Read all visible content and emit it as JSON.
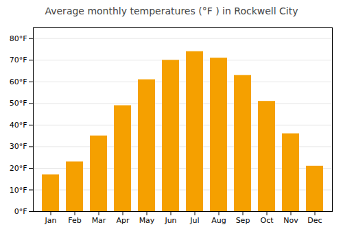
{
  "chart_data": {
    "type": "bar",
    "title": "Average monthly temperatures (°F ) in Rockwell City",
    "categories": [
      "Jan",
      "Feb",
      "Mar",
      "Apr",
      "May",
      "Jun",
      "Jul",
      "Aug",
      "Sep",
      "Oct",
      "Nov",
      "Dec"
    ],
    "values": [
      17,
      23,
      35,
      49,
      61,
      70,
      74,
      71,
      63,
      51,
      36,
      21
    ],
    "color": "#F5A000",
    "ylim": [
      0,
      85
    ],
    "yticks": [
      {
        "value": 0,
        "label": "0°F"
      },
      {
        "value": 10,
        "label": "10°F"
      },
      {
        "value": 20,
        "label": "20°F"
      },
      {
        "value": 30,
        "label": "30°F"
      },
      {
        "value": 40,
        "label": "40°F"
      },
      {
        "value": 50,
        "label": "50°F"
      },
      {
        "value": 60,
        "label": "60°F"
      },
      {
        "value": 70,
        "label": "70°F"
      },
      {
        "value": 80,
        "label": "80°F"
      }
    ],
    "grid": true
  }
}
